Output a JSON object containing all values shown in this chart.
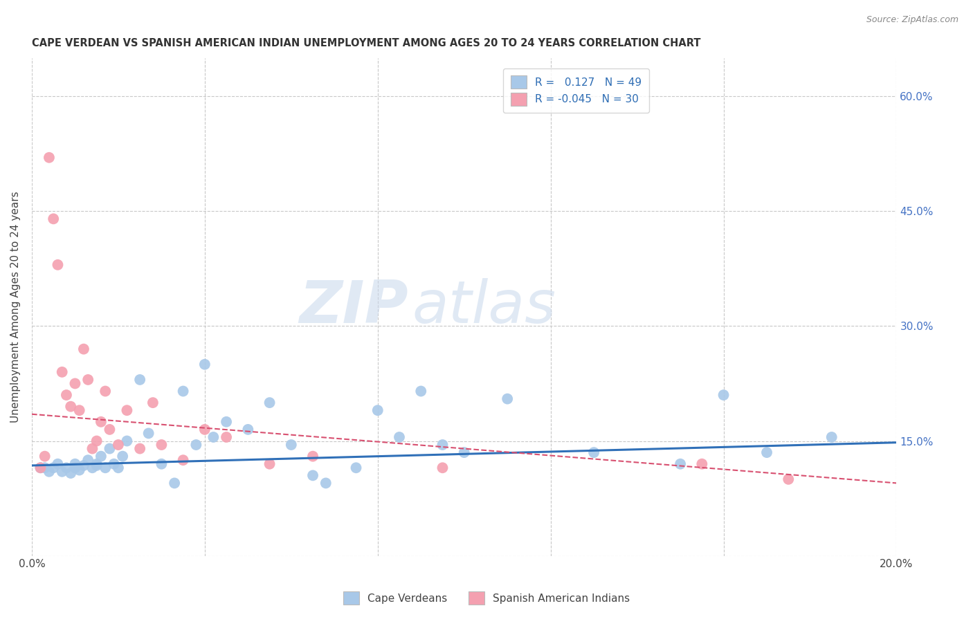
{
  "title": "CAPE VERDEAN VS SPANISH AMERICAN INDIAN UNEMPLOYMENT AMONG AGES 20 TO 24 YEARS CORRELATION CHART",
  "source": "Source: ZipAtlas.com",
  "ylabel": "Unemployment Among Ages 20 to 24 years",
  "xlim": [
    0.0,
    0.2
  ],
  "ylim": [
    0.0,
    0.65
  ],
  "x_ticks": [
    0.0,
    0.04,
    0.08,
    0.12,
    0.16,
    0.2
  ],
  "y_ticks_left": [
    0.0,
    0.15,
    0.3,
    0.45,
    0.6
  ],
  "y_ticks_right": [
    0.15,
    0.3,
    0.45,
    0.6
  ],
  "y_tick_labels_right": [
    "15.0%",
    "30.0%",
    "45.0%",
    "60.0%"
  ],
  "blue_R": 0.127,
  "blue_N": 49,
  "pink_R": -0.045,
  "pink_N": 30,
  "blue_color": "#A8C8E8",
  "pink_color": "#F4A0B0",
  "blue_line_color": "#3070B8",
  "pink_line_color": "#D85070",
  "grid_color": "#C8C8C8",
  "background_color": "#FFFFFF",
  "watermark_zip": "ZIP",
  "watermark_atlas": "atlas",
  "blue_line_start_y": 0.118,
  "blue_line_end_y": 0.148,
  "pink_line_start_y": 0.185,
  "pink_line_end_y": 0.095,
  "blue_scatter_x": [
    0.002,
    0.003,
    0.004,
    0.005,
    0.006,
    0.007,
    0.008,
    0.009,
    0.01,
    0.01,
    0.011,
    0.012,
    0.013,
    0.014,
    0.015,
    0.015,
    0.016,
    0.017,
    0.018,
    0.019,
    0.02,
    0.021,
    0.022,
    0.025,
    0.027,
    0.03,
    0.033,
    0.035,
    0.038,
    0.04,
    0.042,
    0.045,
    0.05,
    0.055,
    0.06,
    0.065,
    0.068,
    0.075,
    0.08,
    0.085,
    0.09,
    0.095,
    0.1,
    0.11,
    0.13,
    0.15,
    0.16,
    0.17,
    0.185
  ],
  "blue_scatter_y": [
    0.115,
    0.115,
    0.11,
    0.115,
    0.12,
    0.11,
    0.115,
    0.108,
    0.12,
    0.115,
    0.112,
    0.118,
    0.125,
    0.115,
    0.12,
    0.118,
    0.13,
    0.115,
    0.14,
    0.12,
    0.115,
    0.13,
    0.15,
    0.23,
    0.16,
    0.12,
    0.095,
    0.215,
    0.145,
    0.25,
    0.155,
    0.175,
    0.165,
    0.2,
    0.145,
    0.105,
    0.095,
    0.115,
    0.19,
    0.155,
    0.215,
    0.145,
    0.135,
    0.205,
    0.135,
    0.12,
    0.21,
    0.135,
    0.155
  ],
  "pink_scatter_x": [
    0.002,
    0.003,
    0.004,
    0.005,
    0.006,
    0.007,
    0.008,
    0.009,
    0.01,
    0.011,
    0.012,
    0.013,
    0.014,
    0.015,
    0.016,
    0.017,
    0.018,
    0.02,
    0.022,
    0.025,
    0.028,
    0.03,
    0.035,
    0.04,
    0.045,
    0.055,
    0.065,
    0.095,
    0.155,
    0.175
  ],
  "pink_scatter_y": [
    0.115,
    0.13,
    0.52,
    0.44,
    0.38,
    0.24,
    0.21,
    0.195,
    0.225,
    0.19,
    0.27,
    0.23,
    0.14,
    0.15,
    0.175,
    0.215,
    0.165,
    0.145,
    0.19,
    0.14,
    0.2,
    0.145,
    0.125,
    0.165,
    0.155,
    0.12,
    0.13,
    0.115,
    0.12,
    0.1
  ]
}
